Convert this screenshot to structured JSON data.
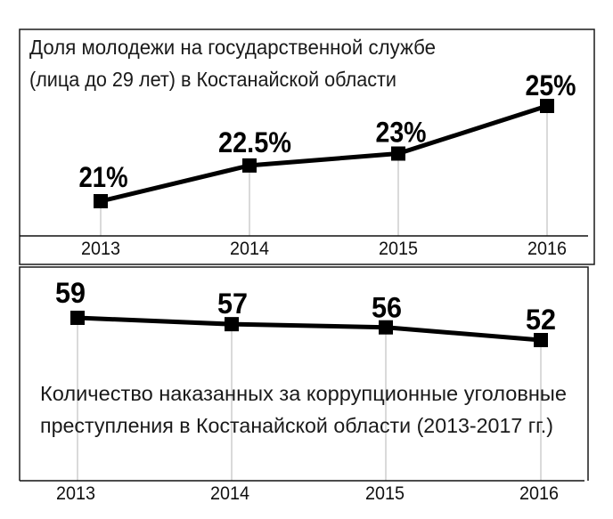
{
  "chart_data": [
    {
      "type": "line",
      "title": [
        "Доля молодежи на государственной службе",
        "(лица до 29 лет) в Костанайской области"
      ],
      "categories": [
        "2013",
        "2014",
        "2015",
        "2016"
      ],
      "values": [
        21,
        22.5,
        23,
        25
      ],
      "data_labels": [
        "21%",
        "22.5%",
        "23%",
        "25%"
      ],
      "grid": false,
      "marker": "square",
      "line_color": "#000000",
      "drop_line_color": "#b5b5b5"
    },
    {
      "type": "line",
      "title": [
        "Количество наказанных за коррупционные уголовные",
        "преступления в Костанайской области (2013-2017 гг.)"
      ],
      "categories": [
        "2013",
        "2014",
        "2015",
        "2016"
      ],
      "values": [
        59,
        57,
        56,
        52
      ],
      "data_labels": [
        "59",
        "57",
        "56",
        "52"
      ],
      "grid": false,
      "marker": "square",
      "line_color": "#000000",
      "drop_line_color": "#b5b5b5"
    }
  ]
}
